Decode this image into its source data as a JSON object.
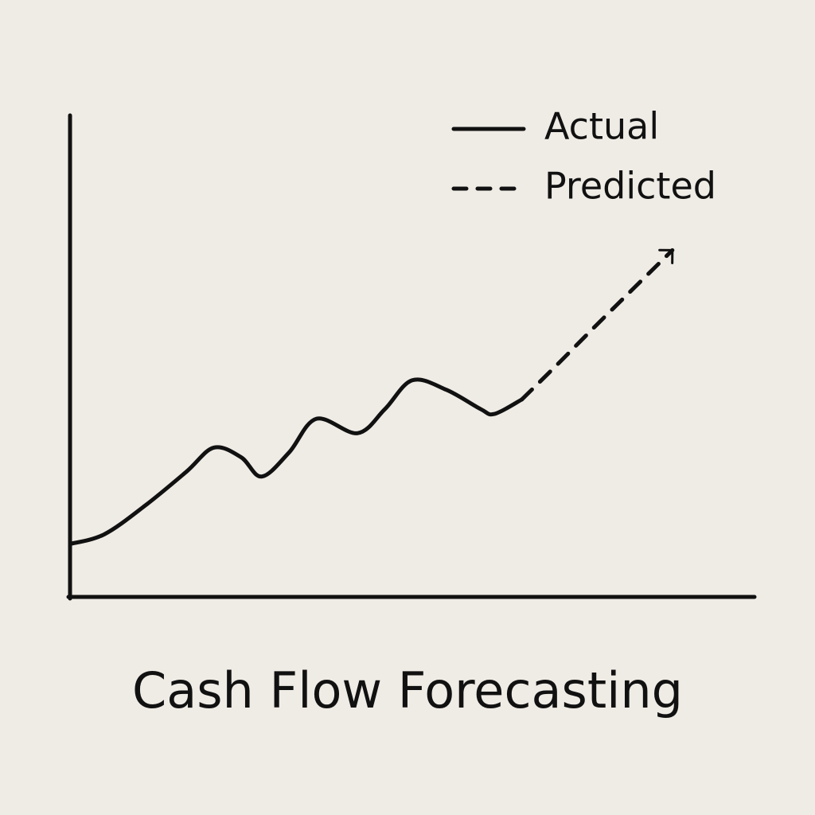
{
  "chart_data": {
    "type": "line",
    "title": "Cash Flow Forecasting",
    "xlim": [
      0,
      100
    ],
    "ylim": [
      0,
      100
    ],
    "legend": "top-right",
    "series": [
      {
        "name": "Actual",
        "color": "#111111",
        "line_style": "solid",
        "x": [
          0,
          5,
          11,
          17,
          21,
          25,
          28,
          32,
          36,
          42,
          46,
          50,
          55,
          60,
          62,
          66
        ],
        "values": [
          11,
          13,
          19,
          26,
          31,
          29,
          25,
          30,
          37,
          34,
          39,
          45,
          43,
          39,
          38,
          41
        ]
      },
      {
        "name": "Predicted",
        "color": "#111111",
        "line_style": "dashed",
        "end_marker": "arrow",
        "x": [
          66,
          71,
          78,
          88
        ],
        "values": [
          41,
          48,
          58,
          72
        ]
      }
    ]
  }
}
